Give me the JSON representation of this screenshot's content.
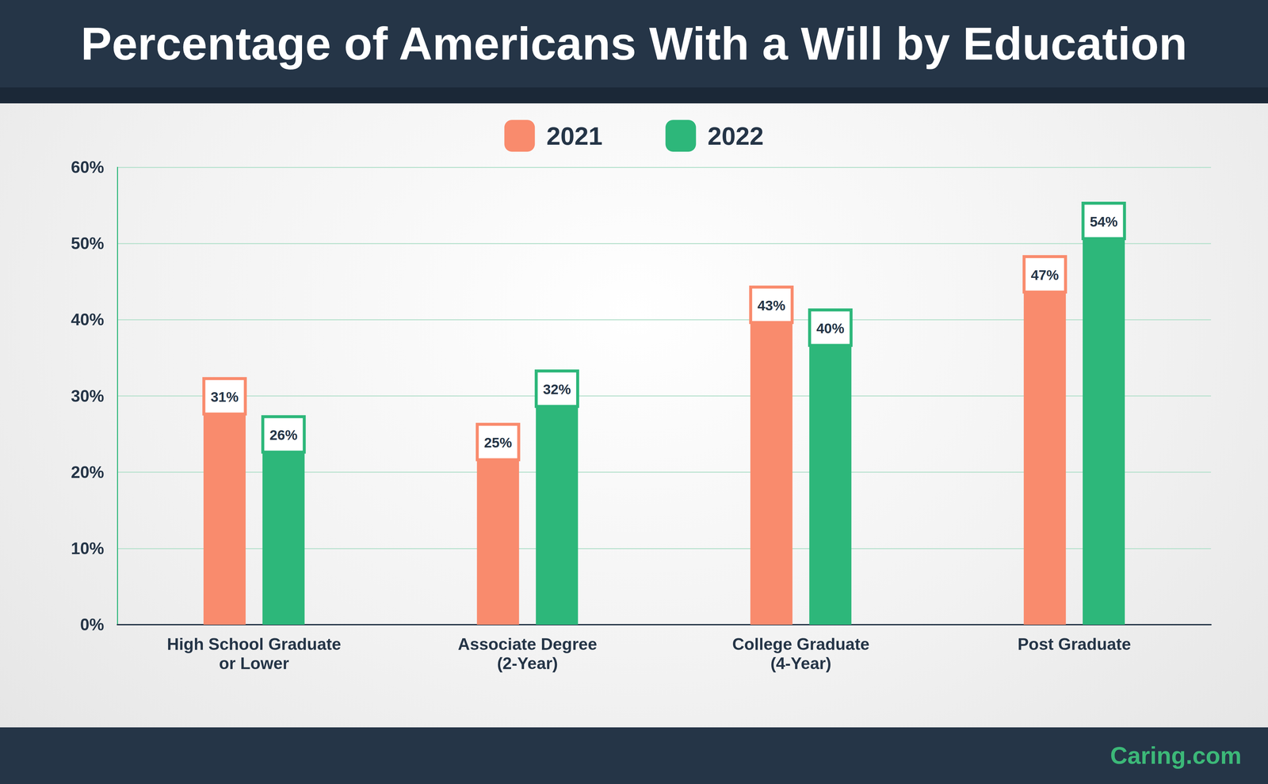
{
  "chart_data": {
    "type": "bar",
    "title": "Percentage of Americans With a Will by Education",
    "source": "Caring.com",
    "categories": [
      "High School Graduate\nor Lower",
      "Associate Degree\n(2-Year)",
      "College Graduate\n(4-Year)",
      "Post Graduate"
    ],
    "series": [
      {
        "name": "2021",
        "color": "#f98b6d",
        "values": [
          31,
          25,
          43,
          47
        ],
        "value_labels": [
          "31%",
          "25%",
          "43%",
          "47%"
        ]
      },
      {
        "name": "2022",
        "color": "#2db77a",
        "values": [
          26,
          32,
          40,
          54
        ],
        "value_labels": [
          "26%",
          "32%",
          "40%",
          "54%"
        ]
      }
    ],
    "ylim": [
      0,
      60
    ],
    "yticks": [
      {
        "value": 0,
        "label": "0%"
      },
      {
        "value": 10,
        "label": "10%"
      },
      {
        "value": 20,
        "label": "20%"
      },
      {
        "value": 30,
        "label": "30%"
      },
      {
        "value": 40,
        "label": "40%"
      },
      {
        "value": 50,
        "label": "50%"
      },
      {
        "value": 60,
        "label": "60%"
      }
    ],
    "grid": true,
    "legend": "top",
    "data_labels": true
  }
}
